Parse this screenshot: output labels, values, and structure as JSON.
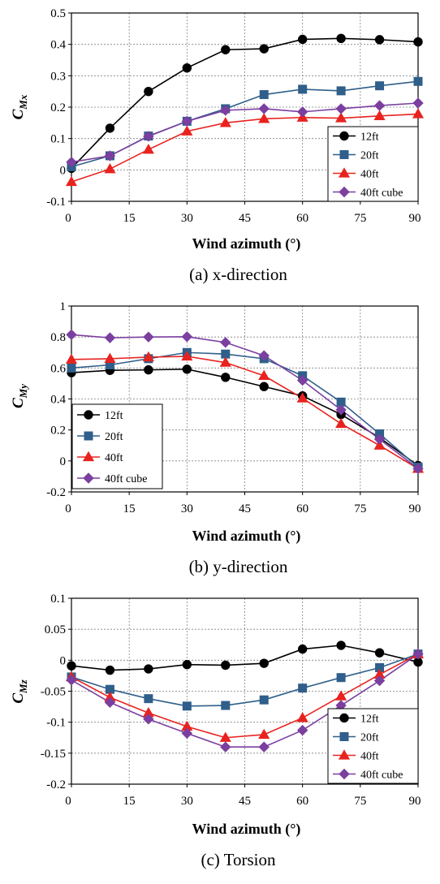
{
  "chart_data": [
    {
      "type": "line",
      "caption": "(a) x-direction",
      "xlabel": "Wind azimuth (°)",
      "ylabel_main": "C",
      "ylabel_sub": "Mx",
      "xlim": [
        0,
        90
      ],
      "ylim": [
        -0.1,
        0.5
      ],
      "xticks": [
        0,
        15,
        30,
        45,
        60,
        75,
        90
      ],
      "yticks": [
        -0.1,
        0,
        0.1,
        0.2,
        0.3,
        0.4,
        0.5
      ],
      "ytick_labels": [
        "-0.1",
        "0",
        "0.1",
        "0.2",
        "0.3",
        "0.4",
        "0.5"
      ],
      "grid": true,
      "legend_position": "bottom-right",
      "x": [
        0,
        10,
        20,
        30,
        40,
        50,
        60,
        70,
        80,
        90
      ],
      "series": [
        {
          "name": "12ft",
          "color": "#000000",
          "marker": "circle",
          "values": [
            0.005,
            0.133,
            0.25,
            0.325,
            0.383,
            0.386,
            0.416,
            0.419,
            0.415,
            0.408
          ]
        },
        {
          "name": "20ft",
          "color": "#2f5f8a",
          "marker": "square",
          "values": [
            0.01,
            0.045,
            0.108,
            0.155,
            0.195,
            0.24,
            0.257,
            0.252,
            0.268,
            0.282
          ]
        },
        {
          "name": "40ft",
          "color": "#e8231f",
          "marker": "triangle",
          "values": [
            -0.038,
            0.003,
            0.065,
            0.123,
            0.15,
            0.163,
            0.167,
            0.165,
            0.172,
            0.178
          ]
        },
        {
          "name": "40ft cube",
          "color": "#7b3fa0",
          "marker": "diamond",
          "values": [
            0.025,
            0.045,
            0.107,
            0.155,
            0.19,
            0.195,
            0.185,
            0.195,
            0.205,
            0.213
          ]
        }
      ]
    },
    {
      "type": "line",
      "caption": "(b) y-direction",
      "xlabel": "Wind azimuth (°)",
      "ylabel_main": "C",
      "ylabel_sub": "My",
      "xlim": [
        0,
        90
      ],
      "ylim": [
        -0.2,
        1
      ],
      "xticks": [
        0,
        15,
        30,
        45,
        60,
        75,
        90
      ],
      "yticks": [
        -0.2,
        0,
        0.2,
        0.4,
        0.6,
        0.8,
        1
      ],
      "ytick_labels": [
        "-0.2",
        "0",
        "0.2",
        "0.4",
        "0.6",
        "0.8",
        "1"
      ],
      "grid": true,
      "legend_position": "bottom-left",
      "x": [
        0,
        10,
        20,
        30,
        40,
        50,
        60,
        70,
        80,
        90
      ],
      "series": [
        {
          "name": "12ft",
          "color": "#000000",
          "marker": "circle",
          "values": [
            0.57,
            0.585,
            0.588,
            0.592,
            0.54,
            0.48,
            0.42,
            0.3,
            0.15,
            -0.03
          ]
        },
        {
          "name": "20ft",
          "color": "#2f5f8a",
          "marker": "square",
          "values": [
            0.6,
            0.62,
            0.66,
            0.7,
            0.69,
            0.66,
            0.55,
            0.38,
            0.175,
            -0.04
          ]
        },
        {
          "name": "40ft",
          "color": "#e8231f",
          "marker": "triangle",
          "values": [
            0.655,
            0.66,
            0.67,
            0.675,
            0.635,
            0.55,
            0.405,
            0.24,
            0.1,
            -0.05
          ]
        },
        {
          "name": "40ft cube",
          "color": "#7b3fa0",
          "marker": "diamond",
          "values": [
            0.815,
            0.795,
            0.8,
            0.802,
            0.765,
            0.68,
            0.52,
            0.33,
            0.14,
            -0.05
          ]
        }
      ]
    },
    {
      "type": "line",
      "caption": "(c) Torsion",
      "xlabel": "Wind azimuth (°)",
      "ylabel_main": "C",
      "ylabel_sub": "Mz",
      "xlim": [
        0,
        90
      ],
      "ylim": [
        -0.2,
        0.1
      ],
      "xticks": [
        0,
        15,
        30,
        45,
        60,
        75,
        90
      ],
      "yticks": [
        -0.2,
        -0.15,
        -0.1,
        -0.05,
        0,
        0.05,
        0.1
      ],
      "ytick_labels": [
        "-0.2",
        "-0.15",
        "-0.1",
        "-0.05",
        "0",
        "0.05",
        "0.1"
      ],
      "grid": true,
      "legend_position": "bottom-right",
      "x": [
        0,
        10,
        20,
        30,
        40,
        50,
        60,
        70,
        80,
        90
      ],
      "series": [
        {
          "name": "12ft",
          "color": "#000000",
          "marker": "circle",
          "values": [
            -0.009,
            -0.016,
            -0.014,
            -0.007,
            -0.008,
            -0.005,
            0.018,
            0.024,
            0.012,
            -0.003
          ]
        },
        {
          "name": "20ft",
          "color": "#2f5f8a",
          "marker": "square",
          "values": [
            -0.027,
            -0.047,
            -0.062,
            -0.074,
            -0.073,
            -0.064,
            -0.045,
            -0.028,
            -0.012,
            0.01
          ]
        },
        {
          "name": "40ft",
          "color": "#e8231f",
          "marker": "triangle",
          "values": [
            -0.027,
            -0.06,
            -0.085,
            -0.107,
            -0.125,
            -0.12,
            -0.093,
            -0.058,
            -0.023,
            0.01
          ]
        },
        {
          "name": "40ft cube",
          "color": "#7b3fa0",
          "marker": "diamond",
          "values": [
            -0.032,
            -0.068,
            -0.095,
            -0.118,
            -0.14,
            -0.14,
            -0.113,
            -0.073,
            -0.033,
            0.01
          ]
        }
      ]
    }
  ]
}
